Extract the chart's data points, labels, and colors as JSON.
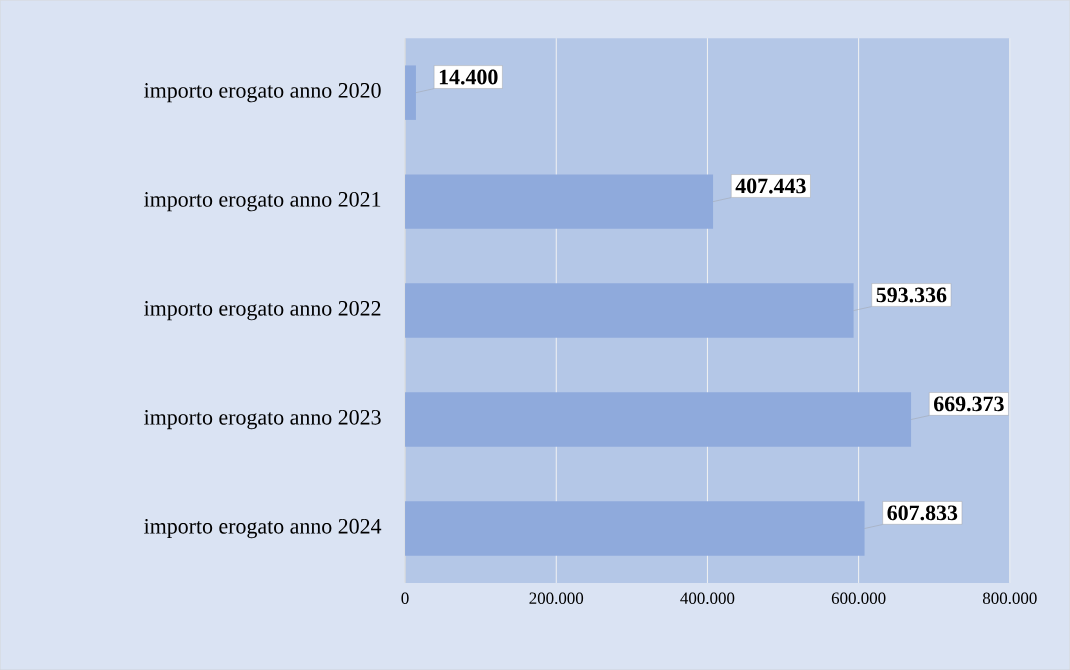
{
  "chart_data": {
    "type": "bar",
    "orientation": "horizontal",
    "categories": [
      "importo erogato anno 2020",
      "importo erogato anno 2021",
      "importo erogato anno 2022",
      "importo erogato anno 2023",
      "importo erogato anno 2024"
    ],
    "values": [
      14400,
      407443,
      593336,
      669373,
      607833
    ],
    "value_labels": [
      "14.400",
      "407.443",
      "593.336",
      "669.373",
      "607.833"
    ],
    "color": "#8faadc",
    "xlim": [
      0,
      800000
    ],
    "xticks": [
      0,
      {
        "value": 200000,
        "label": "200.000"
      },
      {
        "value": 400000,
        "label": "400.000"
      },
      {
        "value": 600000,
        "label": "600.000"
      },
      {
        "value": 800000,
        "label": "800.000"
      }
    ],
    "grid": "x"
  }
}
